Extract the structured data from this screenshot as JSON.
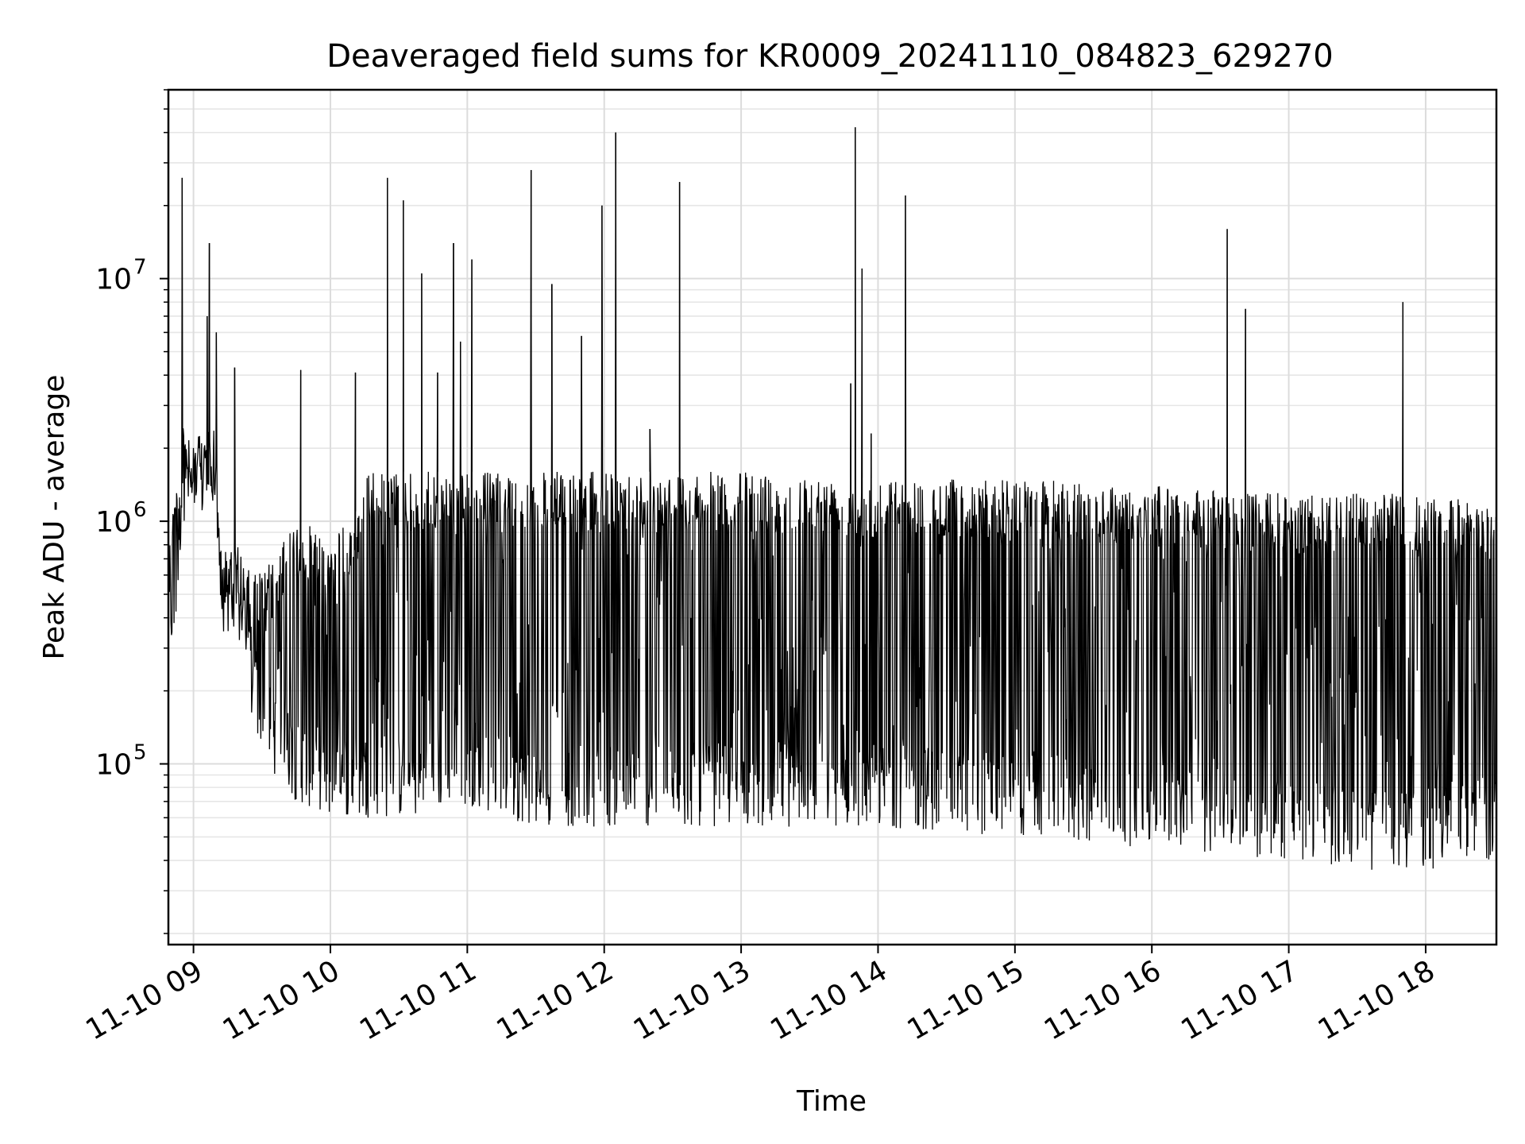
{
  "chart_data": {
    "type": "line",
    "title": "Deaveraged field sums for KR0009_20241110_084823_629270",
    "xlabel": "Time",
    "ylabel": "Peak ADU - average",
    "yscale": "log",
    "ylim": [
      18000,
      60000000
    ],
    "xlim": [
      "2024-11-10 08:49",
      "2024-11-10 18:31"
    ],
    "grid": true,
    "line_color": "#000000",
    "x_ticks": [
      {
        "value": "2024-11-10 09:00",
        "label": "11-10 09"
      },
      {
        "value": "2024-11-10 10:00",
        "label": "11-10 10"
      },
      {
        "value": "2024-11-10 11:00",
        "label": "11-10 11"
      },
      {
        "value": "2024-11-10 12:00",
        "label": "11-10 12"
      },
      {
        "value": "2024-11-10 13:00",
        "label": "11-10 13"
      },
      {
        "value": "2024-11-10 14:00",
        "label": "11-10 14"
      },
      {
        "value": "2024-11-10 15:00",
        "label": "11-10 15"
      },
      {
        "value": "2024-11-10 16:00",
        "label": "11-10 16"
      },
      {
        "value": "2024-11-10 17:00",
        "label": "11-10 17"
      },
      {
        "value": "2024-11-10 18:00",
        "label": "11-10 18"
      }
    ],
    "y_ticks": [
      {
        "value": 100000,
        "base": "10",
        "exp": "5"
      },
      {
        "value": 1000000,
        "base": "10",
        "exp": "6"
      },
      {
        "value": 10000000,
        "base": "10",
        "exp": "7"
      }
    ],
    "envelope": [
      {
        "x": "2024-11-10 08:49",
        "low": 300000,
        "high": 1300000
      },
      {
        "x": "2024-11-10 08:52",
        "low": 280000,
        "high": 1400000
      },
      {
        "x": "2024-11-10 08:55",
        "low": 1000000,
        "high": 2500000
      },
      {
        "x": "2024-11-10 09:00",
        "low": 1000000,
        "high": 2000000
      },
      {
        "x": "2024-11-10 09:05",
        "low": 1000000,
        "high": 2500000
      },
      {
        "x": "2024-11-10 09:10",
        "low": 1100000,
        "high": 2000000
      },
      {
        "x": "2024-11-10 09:12",
        "low": 350000,
        "high": 800000
      },
      {
        "x": "2024-11-10 09:20",
        "low": 300000,
        "high": 800000
      },
      {
        "x": "2024-11-10 09:25",
        "low": 150000,
        "high": 600000
      },
      {
        "x": "2024-11-10 09:35",
        "low": 90000,
        "high": 700000
      },
      {
        "x": "2024-11-10 09:45",
        "low": 70000,
        "high": 1000000
      },
      {
        "x": "2024-11-10 10:00",
        "low": 60000,
        "high": 900000
      },
      {
        "x": "2024-11-10 10:10",
        "low": 60000,
        "high": 1000000
      },
      {
        "x": "2024-11-10 10:15",
        "low": 60000,
        "high": 1600000
      },
      {
        "x": "2024-11-10 10:40",
        "low": 60000,
        "high": 1600000
      },
      {
        "x": "2024-11-10 10:55",
        "low": 70000,
        "high": 1600000
      },
      {
        "x": "2024-11-10 11:30",
        "low": 55000,
        "high": 1600000
      },
      {
        "x": "2024-11-10 12:00",
        "low": 55000,
        "high": 1600000
      },
      {
        "x": "2024-11-10 13:00",
        "low": 55000,
        "high": 1600000
      },
      {
        "x": "2024-11-10 14:00",
        "low": 55000,
        "high": 1500000
      },
      {
        "x": "2024-11-10 15:00",
        "low": 50000,
        "high": 1500000
      },
      {
        "x": "2024-11-10 16:00",
        "low": 45000,
        "high": 1400000
      },
      {
        "x": "2024-11-10 17:00",
        "low": 40000,
        "high": 1300000
      },
      {
        "x": "2024-11-10 17:45",
        "low": 35000,
        "high": 1300000
      },
      {
        "x": "2024-11-10 18:31",
        "low": 40000,
        "high": 1200000
      }
    ],
    "spikes": [
      {
        "x": "2024-11-10 08:55",
        "y": 26000000
      },
      {
        "x": "2024-11-10 09:06",
        "y": 7000000
      },
      {
        "x": "2024-11-10 09:07",
        "y": 14000000
      },
      {
        "x": "2024-11-10 09:10",
        "y": 6000000
      },
      {
        "x": "2024-11-10 09:18",
        "y": 4300000
      },
      {
        "x": "2024-11-10 09:47",
        "y": 4200000
      },
      {
        "x": "2024-11-10 10:11",
        "y": 4100000
      },
      {
        "x": "2024-11-10 10:25",
        "y": 26000000
      },
      {
        "x": "2024-11-10 10:32",
        "y": 21000000
      },
      {
        "x": "2024-11-10 10:40",
        "y": 10500000
      },
      {
        "x": "2024-11-10 10:47",
        "y": 4100000
      },
      {
        "x": "2024-11-10 10:54",
        "y": 14000000
      },
      {
        "x": "2024-11-10 10:57",
        "y": 5500000
      },
      {
        "x": "2024-11-10 11:02",
        "y": 12000000
      },
      {
        "x": "2024-11-10 11:28",
        "y": 28000000
      },
      {
        "x": "2024-11-10 11:37",
        "y": 9500000
      },
      {
        "x": "2024-11-10 11:50",
        "y": 5800000
      },
      {
        "x": "2024-11-10 11:59",
        "y": 20000000
      },
      {
        "x": "2024-11-10 12:05",
        "y": 40000000
      },
      {
        "x": "2024-11-10 12:20",
        "y": 2400000
      },
      {
        "x": "2024-11-10 12:33",
        "y": 25000000
      },
      {
        "x": "2024-11-10 13:48",
        "y": 3700000
      },
      {
        "x": "2024-11-10 13:50",
        "y": 42000000
      },
      {
        "x": "2024-11-10 13:53",
        "y": 11000000
      },
      {
        "x": "2024-11-10 13:57",
        "y": 2300000
      },
      {
        "x": "2024-11-10 14:12",
        "y": 22000000
      },
      {
        "x": "2024-11-10 16:33",
        "y": 16000000
      },
      {
        "x": "2024-11-10 16:41",
        "y": 7500000
      },
      {
        "x": "2024-11-10 17:50",
        "y": 8000000
      }
    ]
  }
}
